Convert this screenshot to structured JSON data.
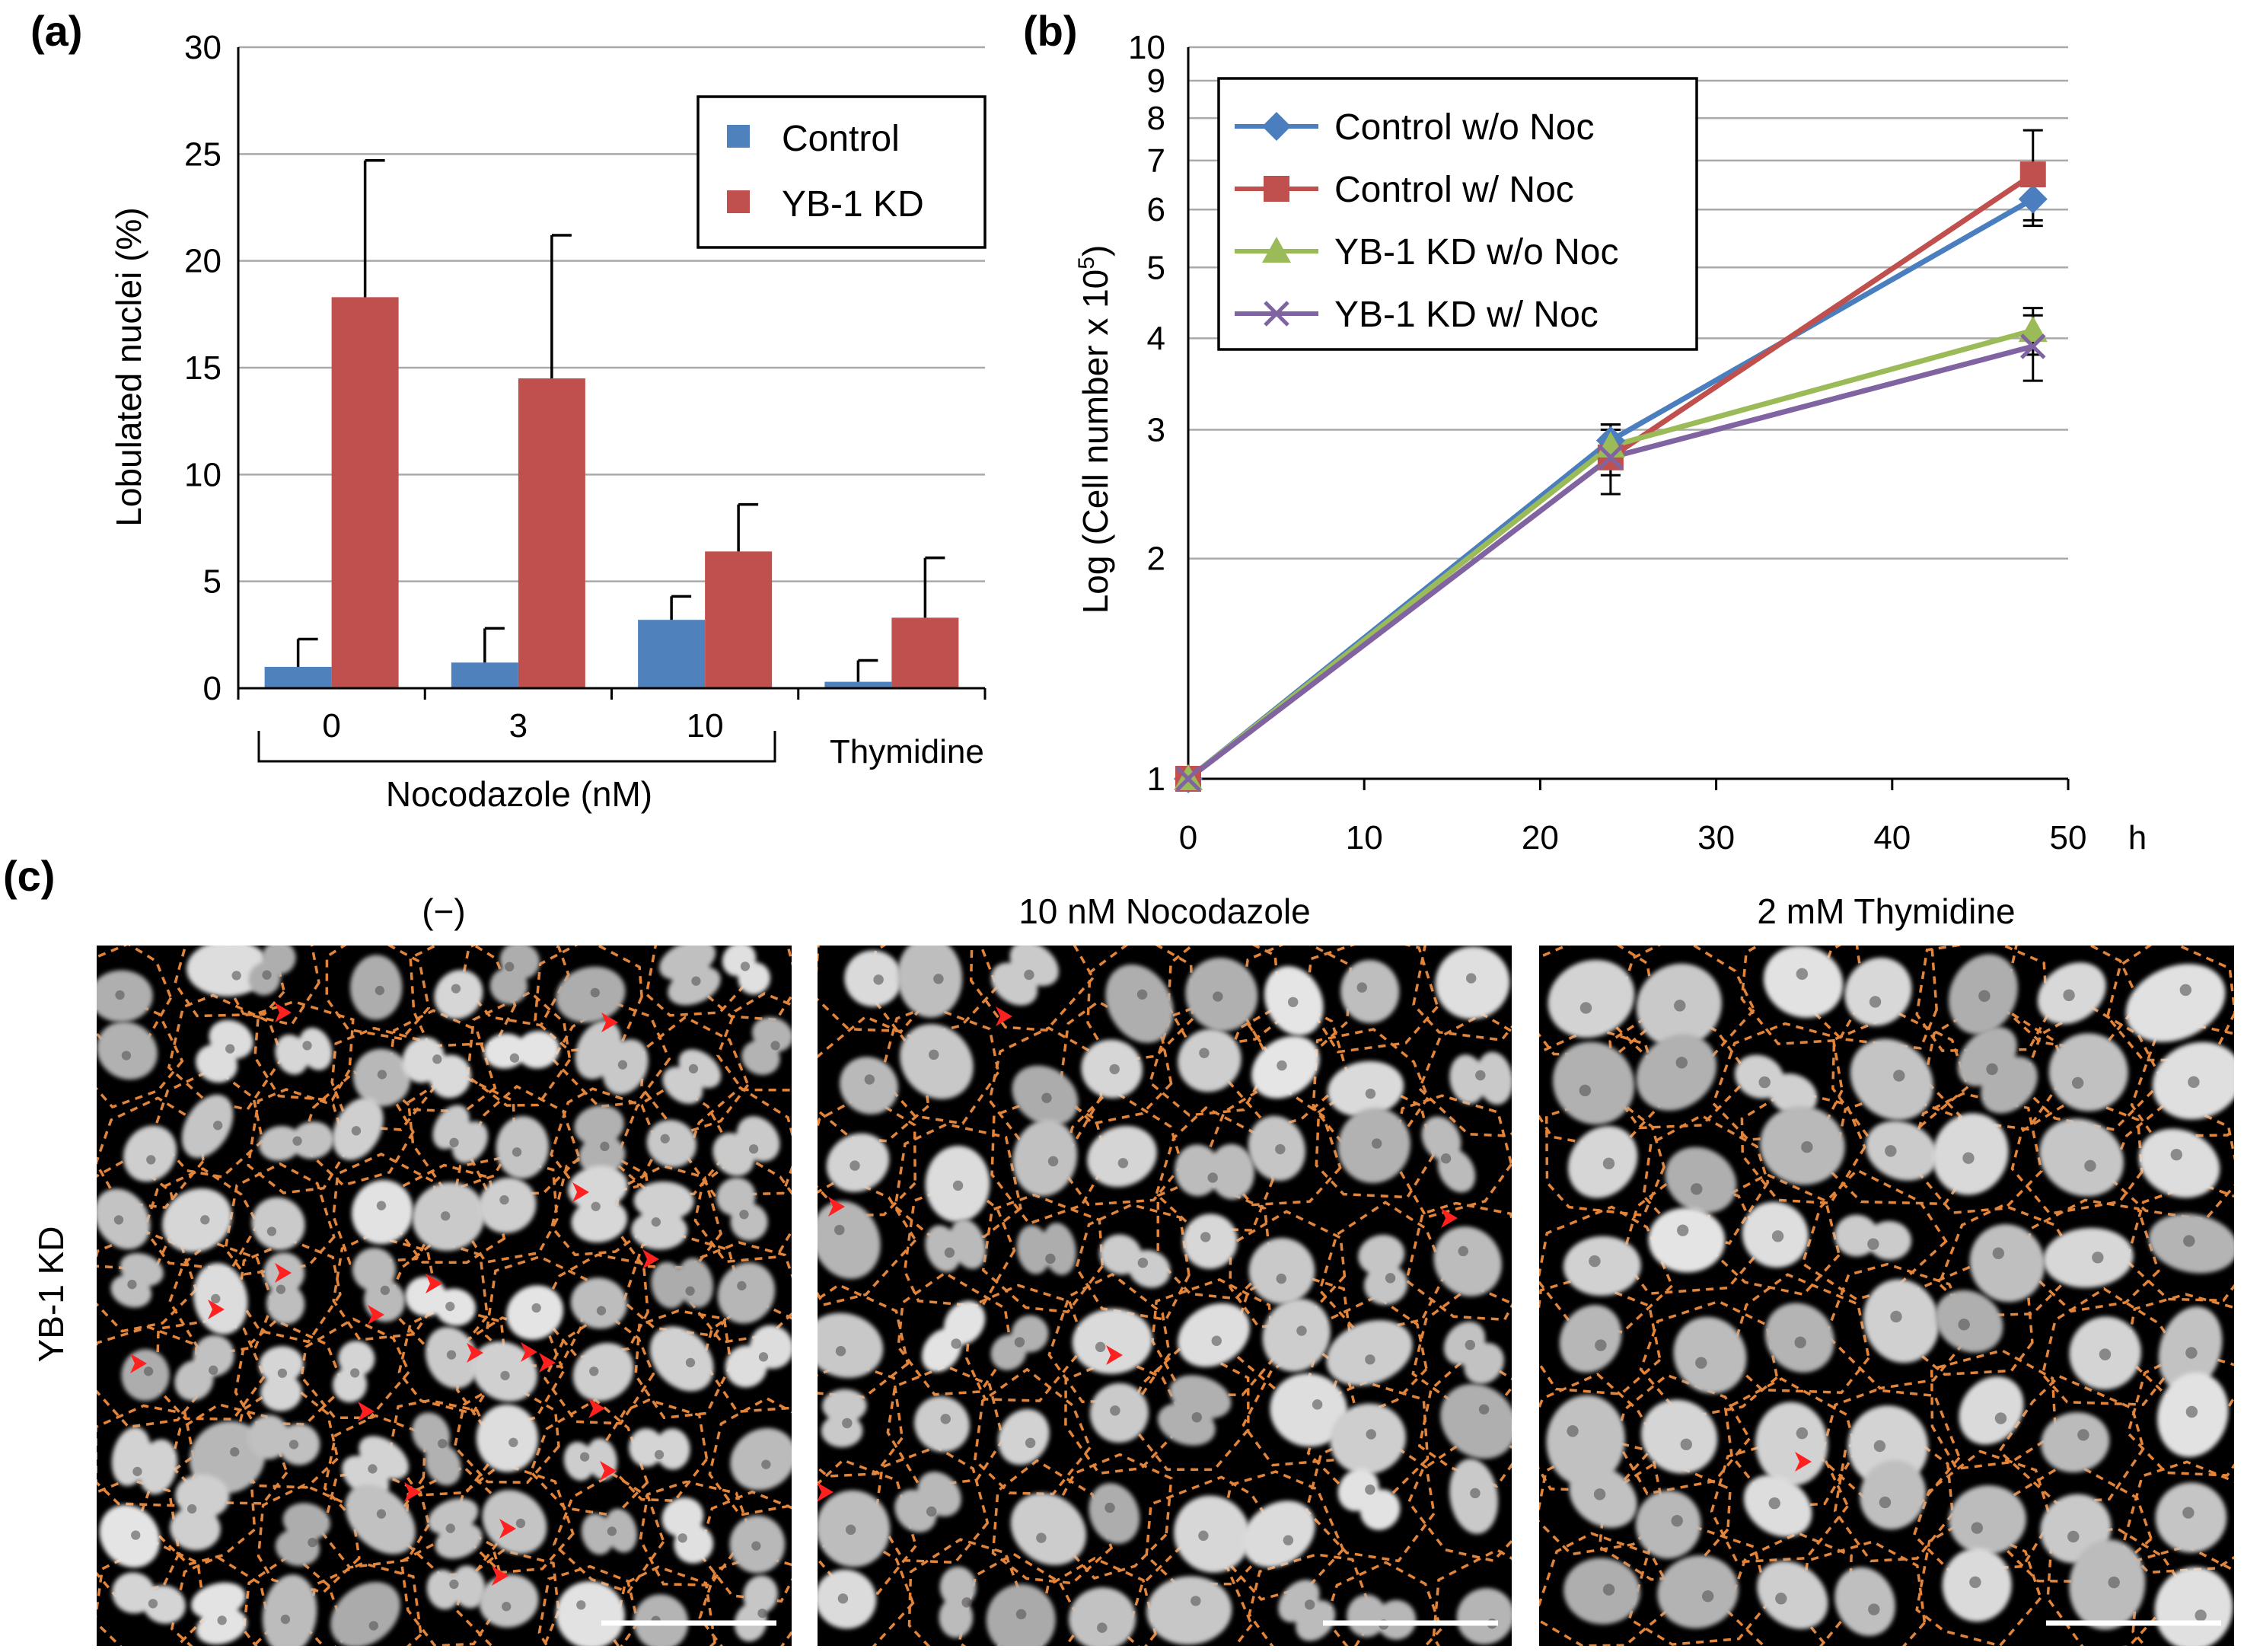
{
  "panels": {
    "a": "(a)",
    "b": "(b)",
    "c": "(c)"
  },
  "colors": {
    "control": "#4f81bd",
    "yb1kd": "#c0504d",
    "control_wo_noc": "#4a7ebf",
    "control_w_noc": "#c0504d",
    "yb1_wo_noc": "#9bbb59",
    "yb1_w_noc": "#8064a2",
    "cell_outline": "#e2843a",
    "arrowhead": "#ff2020"
  },
  "chart_data": [
    {
      "id": "a",
      "type": "bar",
      "ylabel": "Lobulated nuclei (%)",
      "ylim": [
        0,
        30
      ],
      "yticks": [
        0,
        5,
        10,
        15,
        20,
        25,
        30
      ],
      "categories": [
        "0",
        "3",
        "10",
        "Thymidine"
      ],
      "group_label": "Nocodazole (nM)",
      "grid": true,
      "legend_position": "top-right",
      "series": [
        {
          "name": "Control",
          "values": [
            1.0,
            1.2,
            3.2,
            0.3
          ],
          "errors": [
            1.3,
            1.6,
            1.1,
            1.0
          ]
        },
        {
          "name": "YB-1 KD",
          "values": [
            18.3,
            14.5,
            6.4,
            3.3
          ],
          "errors": [
            6.4,
            6.7,
            2.2,
            2.8
          ]
        }
      ]
    },
    {
      "id": "b",
      "type": "line",
      "ylabel": "Log (Cell number x 10",
      "ylabel_sup": "5",
      "ylabel_close": ")",
      "xlabel": "h",
      "yscale": "log",
      "ylim": [
        1,
        10
      ],
      "xlim": [
        0,
        50
      ],
      "yticks": [
        1,
        2,
        3,
        4,
        5,
        6,
        7,
        8,
        9,
        10
      ],
      "xticks": [
        0,
        10,
        20,
        30,
        40,
        50
      ],
      "grid": true,
      "legend_position": "top-left",
      "series": [
        {
          "name": "Control w/o Noc",
          "marker": "diamond",
          "x": [
            0,
            24,
            48
          ],
          "y": [
            1.0,
            2.9,
            6.2
          ],
          "errors": [
            0,
            0.15,
            0.4
          ]
        },
        {
          "name": "Control w/ Noc",
          "marker": "square",
          "x": [
            0,
            24,
            48
          ],
          "y": [
            1.0,
            2.75,
            6.7
          ],
          "errors": [
            0,
            0.3,
            1.0
          ]
        },
        {
          "name": "YB-1 KD w/o Noc",
          "marker": "triangle",
          "x": [
            0,
            24,
            48
          ],
          "y": [
            1.0,
            2.85,
            4.1
          ],
          "errors": [
            0,
            0.15,
            0.3
          ]
        },
        {
          "name": "YB-1 KD w/ Noc",
          "marker": "cross",
          "x": [
            0,
            24,
            48
          ],
          "y": [
            1.0,
            2.75,
            3.9
          ],
          "errors": [
            0,
            0.15,
            0.4
          ]
        }
      ]
    }
  ],
  "micrographs": {
    "row_label": "YB-1 KD",
    "titles": [
      "(−)",
      "10 nM Nocodazole",
      "2 mM Thymidine"
    ]
  }
}
